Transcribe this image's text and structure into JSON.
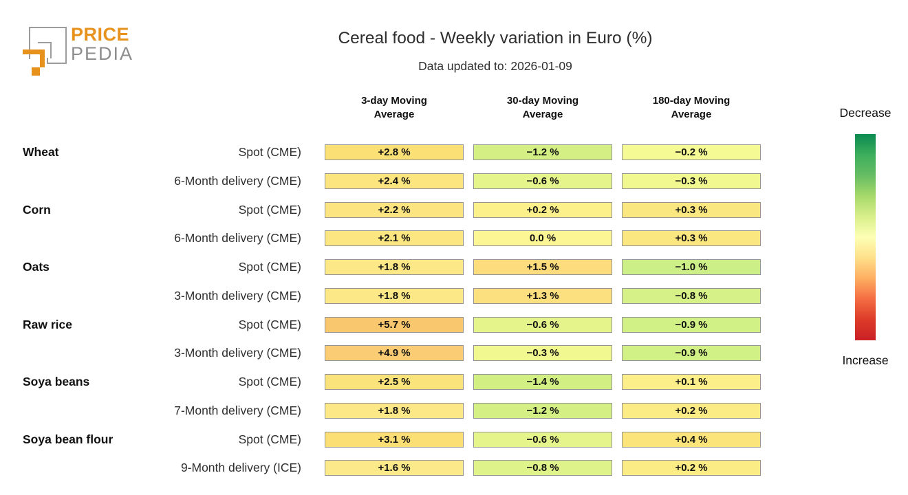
{
  "logo": {
    "brand_line1": "PRICE",
    "brand_line2": "PEDIA",
    "orange": "#E8921E",
    "icon_gray": "#9C9C9C",
    "text_gray": "#8D8D8D"
  },
  "header": {
    "title": "Cereal food - Weekly variation in Euro (%)",
    "subtitle": "Data updated to: 2026-01-09"
  },
  "legend": {
    "decrease_label": "Decrease",
    "increase_label": "Increase",
    "gradient_top_to_bottom": [
      "#0B8A51",
      "#3CAE5C",
      "#66BD63",
      "#A6D96A",
      "#D9EF8B",
      "#FDFFB4",
      "#FEE08B",
      "#FDAE61",
      "#F46D43",
      "#DC3B28",
      "#CB2026"
    ]
  },
  "chart_data": {
    "type": "heatmap",
    "title": "Cereal food - Weekly variation in Euro (%)",
    "data_updated_to": "2026-01-09",
    "unit": "weekly variation in Euro (%)",
    "colorbar": {
      "top": "Decrease",
      "bottom": "Increase"
    },
    "columns": [
      {
        "line1": "3-day Moving",
        "line2": "Average"
      },
      {
        "line1": "30-day Moving",
        "line2": "Average"
      },
      {
        "line1": "180-day Moving",
        "line2": "Average"
      }
    ],
    "rows": [
      {
        "group": "Wheat",
        "label": "Spot (CME)",
        "values": [
          2.8,
          -1.2,
          -0.2
        ],
        "display": [
          "+2.8 %",
          "−1.2 %",
          "−0.2 %"
        ],
        "colors": [
          "#FBE076",
          "#D4F085",
          "#F5FA94"
        ]
      },
      {
        "group": "",
        "label": "6-Month delivery (CME)",
        "values": [
          2.4,
          -0.6,
          -0.3
        ],
        "display": [
          "+2.4 %",
          "−0.6 %",
          "−0.3 %"
        ],
        "colors": [
          "#FCE47E",
          "#E5F58C",
          "#F1F890"
        ]
      },
      {
        "group": "Corn",
        "label": "Spot (CME)",
        "values": [
          2.2,
          0.2,
          0.3
        ],
        "display": [
          "+2.2 %",
          "+0.2 %",
          "+0.3 %"
        ],
        "colors": [
          "#FCE580",
          "#FCF08B",
          "#FBE77F"
        ]
      },
      {
        "group": "",
        "label": "6-Month delivery (CME)",
        "values": [
          2.1,
          0.0,
          0.3
        ],
        "display": [
          "+2.1 %",
          "0.0 %",
          "+0.3 %"
        ],
        "colors": [
          "#FCE681",
          "#FDF695",
          "#FBE77F"
        ]
      },
      {
        "group": "Oats",
        "label": "Spot (CME)",
        "values": [
          1.8,
          1.5,
          -1.0
        ],
        "display": [
          "+1.8 %",
          "+1.5 %",
          "−1.0 %"
        ],
        "colors": [
          "#FCE887",
          "#FCDC7C",
          "#CDEF87"
        ]
      },
      {
        "group": "",
        "label": "3-Month delivery (CME)",
        "values": [
          1.8,
          1.3,
          -0.8
        ],
        "display": [
          "+1.8 %",
          "+1.3 %",
          "−0.8 %"
        ],
        "colors": [
          "#FCE887",
          "#FCDF7F",
          "#D5F188"
        ]
      },
      {
        "group": "Raw rice",
        "label": "Spot (CME)",
        "values": [
          5.7,
          -0.6,
          -0.9
        ],
        "display": [
          "+5.7 %",
          "−0.6 %",
          "−0.9 %"
        ],
        "colors": [
          "#F9C76E",
          "#E5F58C",
          "#D1F086"
        ]
      },
      {
        "group": "",
        "label": "3-Month delivery (CME)",
        "values": [
          4.9,
          -0.3,
          -0.9
        ],
        "display": [
          "+4.9 %",
          "−0.3 %",
          "−0.9 %"
        ],
        "colors": [
          "#FACD74",
          "#F1F890",
          "#D1F086"
        ]
      },
      {
        "group": "Soya beans",
        "label": "Spot (CME)",
        "values": [
          2.5,
          -1.4,
          0.1
        ],
        "display": [
          "+2.5 %",
          "−1.4 %",
          "+0.1 %"
        ],
        "colors": [
          "#FBE37C",
          "#D1EF83",
          "#FCEE88"
        ]
      },
      {
        "group": "",
        "label": "7-Month delivery (CME)",
        "values": [
          1.8,
          -1.2,
          0.2
        ],
        "display": [
          "+1.8 %",
          "−1.2 %",
          "+0.2 %"
        ],
        "colors": [
          "#FCE887",
          "#D4F085",
          "#FCEC85"
        ]
      },
      {
        "group": "Soya bean flour",
        "label": "Spot (CME)",
        "values": [
          3.1,
          -0.6,
          0.4
        ],
        "display": [
          "+3.1 %",
          "−0.6 %",
          "+0.4 %"
        ],
        "colors": [
          "#FBDF74",
          "#E5F58C",
          "#FBE57B"
        ]
      },
      {
        "group": "",
        "label": "9-Month delivery (ICE)",
        "values": [
          1.6,
          -0.8,
          0.2
        ],
        "display": [
          "+1.6 %",
          "−0.8 %",
          "+0.2 %"
        ],
        "colors": [
          "#FCEA8A",
          "#DEF389",
          "#FCEC85"
        ]
      }
    ]
  }
}
